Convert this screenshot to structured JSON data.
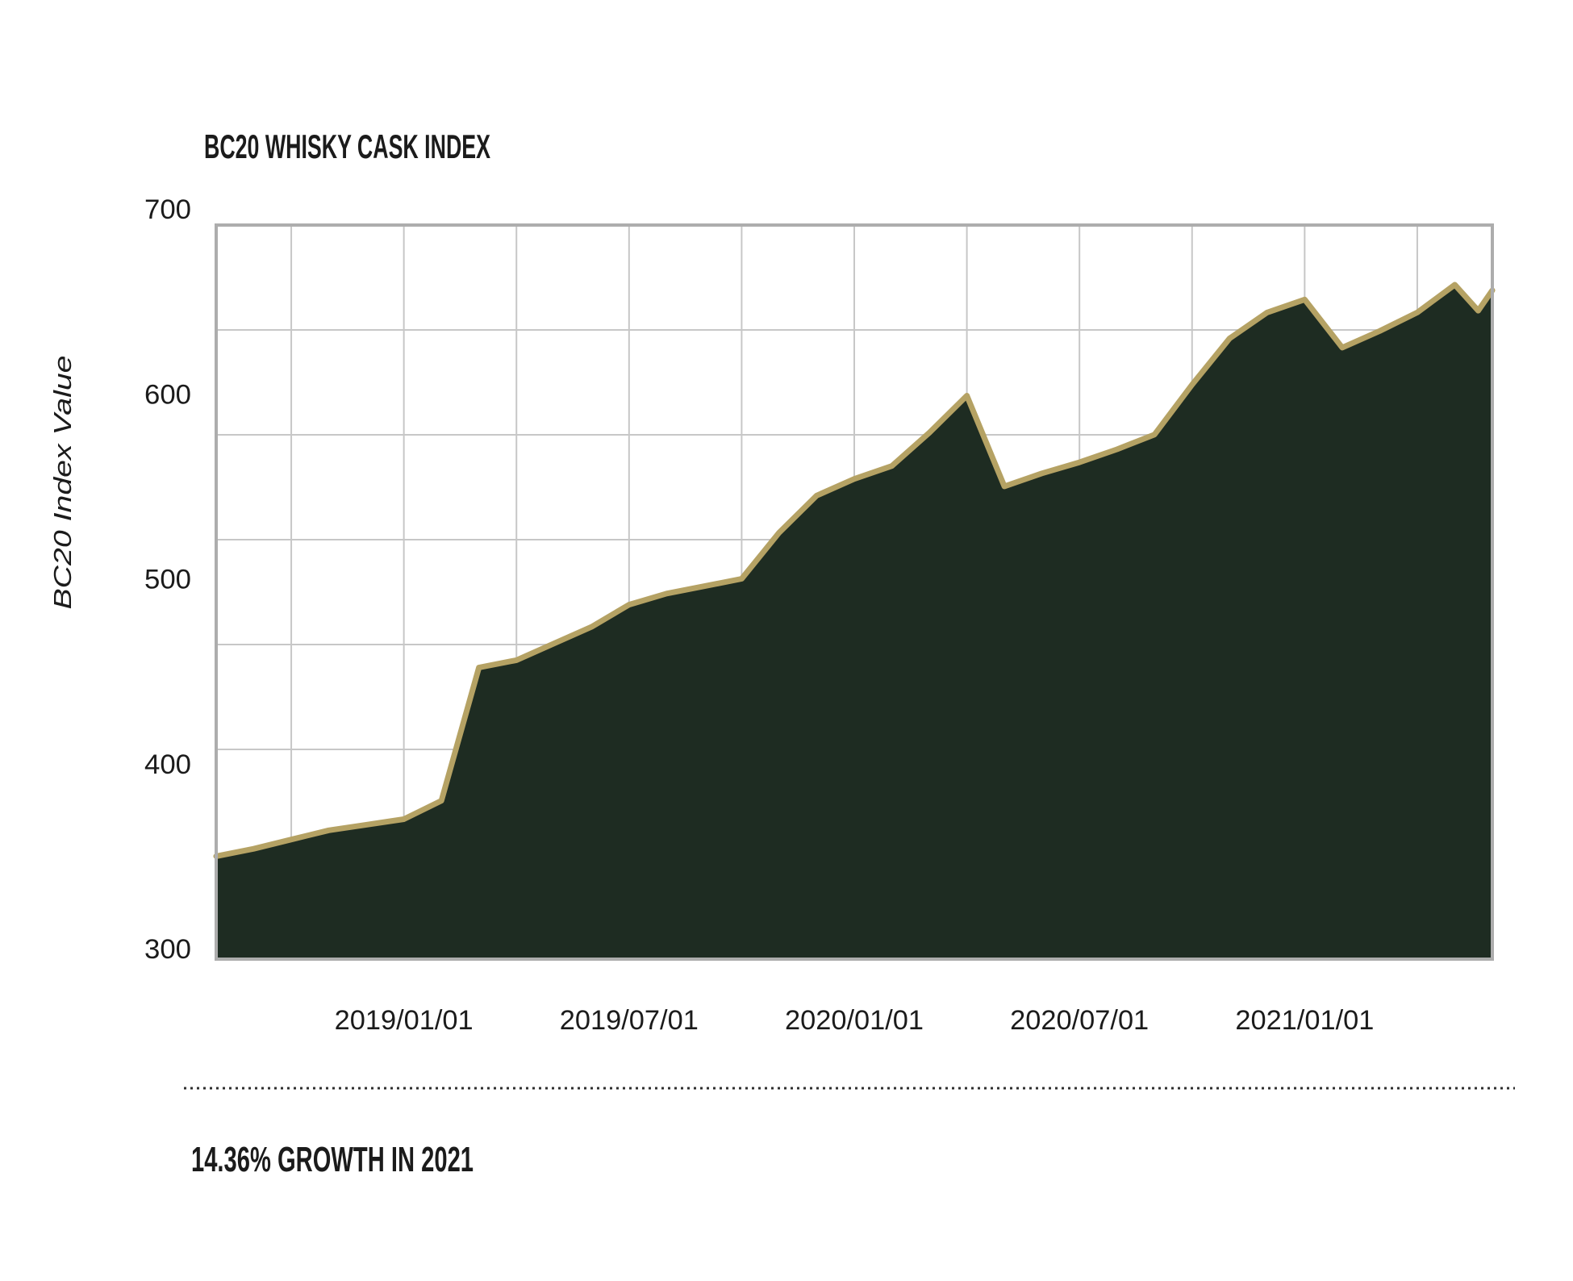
{
  "page": {
    "background": "#ffffff"
  },
  "chart": {
    "title": "BC20 WHISKY CASK INDEX",
    "y_axis_title": "BC20 Index Value",
    "footer_note": "14.36% GROWTH IN 2021"
  },
  "chart_data": {
    "type": "area",
    "title": "BC20 WHISKY CASK INDEX",
    "series_name": "BC20 Whisky Cask Index",
    "xlabel": "",
    "ylabel": "BC20 Index Value",
    "ylim": [
      300,
      700
    ],
    "yticks": [
      700,
      600,
      500,
      400,
      300
    ],
    "xtick_labels": [
      "2019/01/01",
      "2019/07/01",
      "2020/01/01",
      "2020/07/01",
      "2021/01/01"
    ],
    "x_range": [
      "2018/08/01",
      "2021/06/01"
    ],
    "grid": true,
    "legend_position": "none",
    "annotation": "14.36% GROWTH IN 2021",
    "colors": {
      "line": "#b5a264",
      "fill": "#1e2c22",
      "grid": "#c7c7c7",
      "plot_border": "#adadad",
      "text": "#1b1b1b",
      "dotted_rule": "#2f2f2f"
    },
    "points": [
      {
        "date": "2018/08/01",
        "value": 350
      },
      {
        "date": "2018/09/01",
        "value": 354
      },
      {
        "date": "2018/10/01",
        "value": 359
      },
      {
        "date": "2018/11/01",
        "value": 364
      },
      {
        "date": "2018/12/01",
        "value": 367
      },
      {
        "date": "2019/01/01",
        "value": 370
      },
      {
        "date": "2019/02/01",
        "value": 380
      },
      {
        "date": "2019/03/01",
        "value": 452
      },
      {
        "date": "2019/04/01",
        "value": 456
      },
      {
        "date": "2019/05/01",
        "value": 465
      },
      {
        "date": "2019/06/01",
        "value": 474
      },
      {
        "date": "2019/07/01",
        "value": 486
      },
      {
        "date": "2019/08/01",
        "value": 492
      },
      {
        "date": "2019/09/01",
        "value": 496
      },
      {
        "date": "2019/10/01",
        "value": 500
      },
      {
        "date": "2019/11/01",
        "value": 525
      },
      {
        "date": "2019/12/01",
        "value": 545
      },
      {
        "date": "2020/01/01",
        "value": 554
      },
      {
        "date": "2020/02/01",
        "value": 561
      },
      {
        "date": "2020/03/01",
        "value": 579
      },
      {
        "date": "2020/04/01",
        "value": 599
      },
      {
        "date": "2020/05/01",
        "value": 550
      },
      {
        "date": "2020/06/01",
        "value": 557
      },
      {
        "date": "2020/07/01",
        "value": 563
      },
      {
        "date": "2020/08/01",
        "value": 570
      },
      {
        "date": "2020/09/01",
        "value": 578
      },
      {
        "date": "2020/10/01",
        "value": 605
      },
      {
        "date": "2020/11/01",
        "value": 630
      },
      {
        "date": "2020/12/01",
        "value": 644
      },
      {
        "date": "2021/01/01",
        "value": 651
      },
      {
        "date": "2021/02/01",
        "value": 625
      },
      {
        "date": "2021/03/01",
        "value": 634
      },
      {
        "date": "2021/04/01",
        "value": 644
      },
      {
        "date": "2021/05/01",
        "value": 659
      },
      {
        "date": "2021/05/20",
        "value": 645
      },
      {
        "date": "2021/06/01",
        "value": 656
      }
    ]
  }
}
